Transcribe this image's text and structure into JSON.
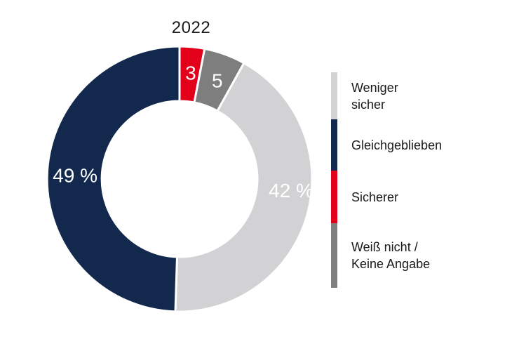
{
  "chart_data": {
    "type": "pie",
    "variant": "donut",
    "title": "2022",
    "unit": "%",
    "values_sum_shown": 99,
    "start_angle_deg": 0,
    "direction": "clockwise",
    "segment_label_color": "#ffffff",
    "text_color": "#1a1a1a",
    "separator_color": "#ffffff",
    "segments": [
      {
        "name": "Sicherer",
        "value": 3,
        "label": "3",
        "color": "#e2001b",
        "label_angle_deg": 6,
        "label_radius": 152
      },
      {
        "name": "Weiß nicht / Keine Angabe",
        "value": 5,
        "label": "5",
        "color": "#7e7e7e",
        "label_angle_deg": 21,
        "label_radius": 150
      },
      {
        "name": "Weniger sicher",
        "value": 42,
        "label": "42 %",
        "color": "#d2d2d4",
        "label_angle_deg": 96,
        "label_radius": 160
      },
      {
        "name": "Gleichgeblieben",
        "value": 49,
        "label": "49 %",
        "color": "#12294d",
        "label_angle_deg": 272,
        "label_radius": 149
      }
    ],
    "legend": {
      "position": "right",
      "items": [
        {
          "lines": [
            "Weniger",
            "sicher"
          ],
          "color": "#d2d2d4"
        },
        {
          "lines": [
            "Gleichgeblieben"
          ],
          "color": "#12294d"
        },
        {
          "lines": [
            "Sicherer"
          ],
          "color": "#e2001b"
        },
        {
          "lines": [
            "Weiß nicht /",
            "Keine Angabe"
          ],
          "color": "#7e7e7e"
        }
      ]
    }
  }
}
